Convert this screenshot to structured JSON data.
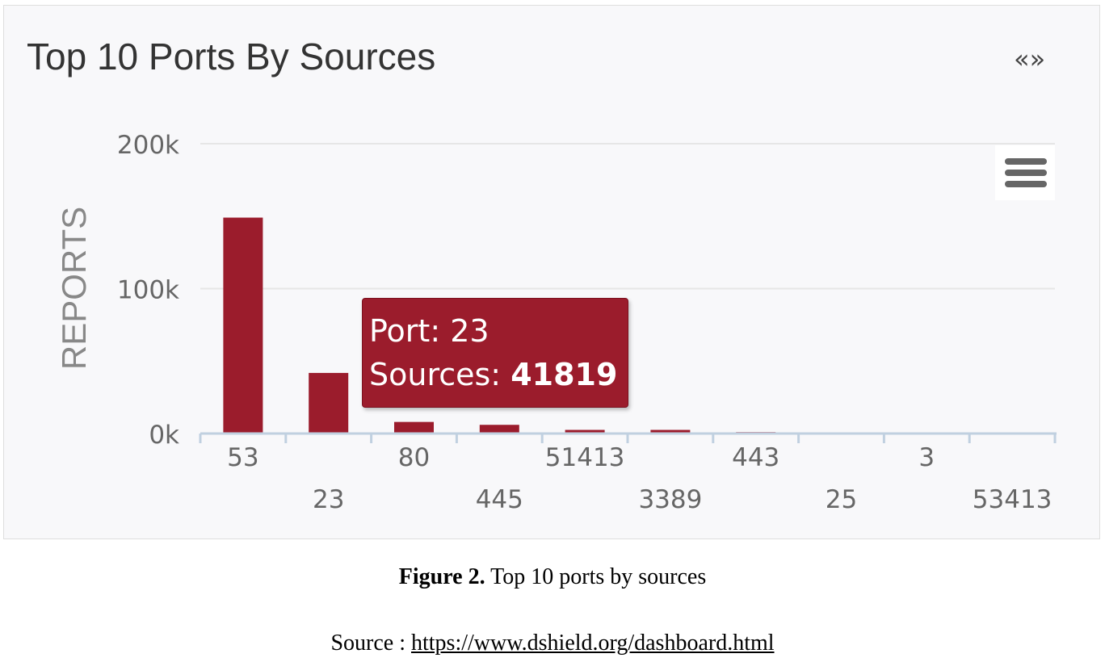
{
  "panel": {
    "title": "Top 10 Ports By Sources",
    "nav_label": "«»",
    "menu_icon": "hamburger-menu-icon"
  },
  "chart_data": {
    "type": "bar",
    "categories": [
      "53",
      "23",
      "80",
      "445",
      "51413",
      "3389",
      "443",
      "25",
      "3",
      "53413"
    ],
    "values": [
      149000,
      41819,
      8000,
      6000,
      2500,
      2500,
      1000,
      500,
      500,
      500
    ],
    "ylabel": "REPORTS",
    "ylim": [
      0,
      200000
    ],
    "yticks": [
      {
        "value": 0,
        "label": "0k"
      },
      {
        "value": 100000,
        "label": "100k"
      },
      {
        "value": 200000,
        "label": "200k"
      }
    ],
    "grid": true,
    "bar_color": "#9b1c2c",
    "legend": false
  },
  "tooltip": {
    "port_label": "Port:",
    "port_value": "23",
    "sources_label": "Sources:",
    "sources_value": "41819"
  },
  "caption": {
    "figure_label": "Figure 2.",
    "text": "Top 10 ports by sources"
  },
  "source": {
    "prefix": "Source :",
    "url": "https://www.dshield.org/dashboard.html"
  }
}
